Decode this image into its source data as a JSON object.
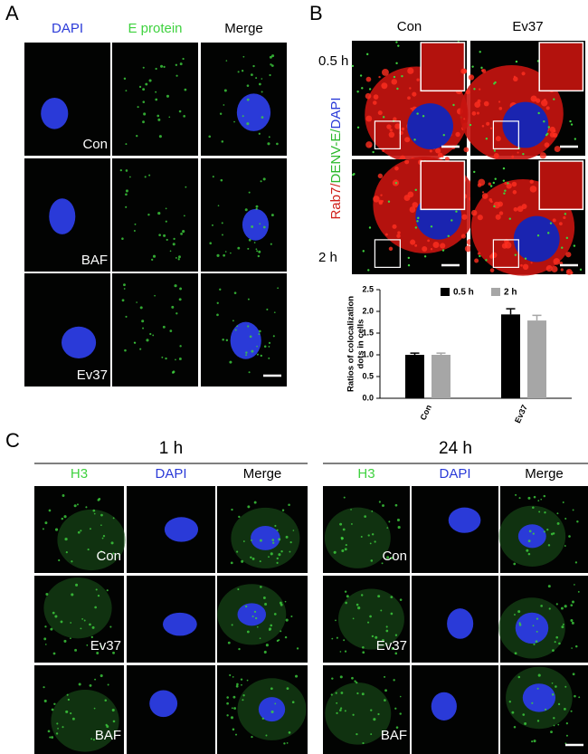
{
  "panel_a": {
    "letter": "A",
    "columns": [
      "DAPI",
      "E protein",
      "Merge"
    ],
    "rows": [
      "Con",
      "BAF",
      "Ev37"
    ]
  },
  "panel_b": {
    "letter": "B",
    "columns": [
      "Con",
      "Ev37"
    ],
    "rows": [
      "0.5 h",
      "2 h"
    ],
    "stain_label": [
      "Rab7/",
      "DENV-E/",
      "DAPI"
    ]
  },
  "chart_data": {
    "type": "bar",
    "ylabel": [
      "Ratios of colocalization",
      "dots in cells"
    ],
    "categories": [
      "Con",
      "Ev37"
    ],
    "series": [
      {
        "name": "0.5 h",
        "color": "#000000",
        "values": [
          1.0,
          1.93
        ],
        "errors": [
          0.04,
          0.13
        ]
      },
      {
        "name": "2 h",
        "color": "#a6a6a6",
        "values": [
          1.0,
          1.79
        ],
        "errors": [
          0.04,
          0.12
        ]
      }
    ],
    "ylim": [
      0,
      2.5
    ],
    "yticks": [
      {
        "value": 0,
        "label": "0.0"
      },
      {
        "value": 0.5,
        "label": "0.5"
      },
      {
        "value": 1,
        "label": "1.0"
      },
      {
        "value": 1.5,
        "label": "1.5"
      },
      {
        "value": 2,
        "label": "2.0"
      },
      {
        "value": 2.5,
        "label": "2.5"
      }
    ]
  },
  "panel_c": {
    "letter": "C",
    "groups": [
      {
        "time": "1 h",
        "columns": [
          "H3",
          "DAPI",
          "Merge"
        ],
        "rows": [
          "Con",
          "Ev37",
          "BAF"
        ]
      },
      {
        "time": "24 h",
        "columns": [
          "H3",
          "DAPI",
          "Merge"
        ],
        "rows": [
          "Con",
          "Ev37",
          "BAF"
        ]
      }
    ]
  }
}
